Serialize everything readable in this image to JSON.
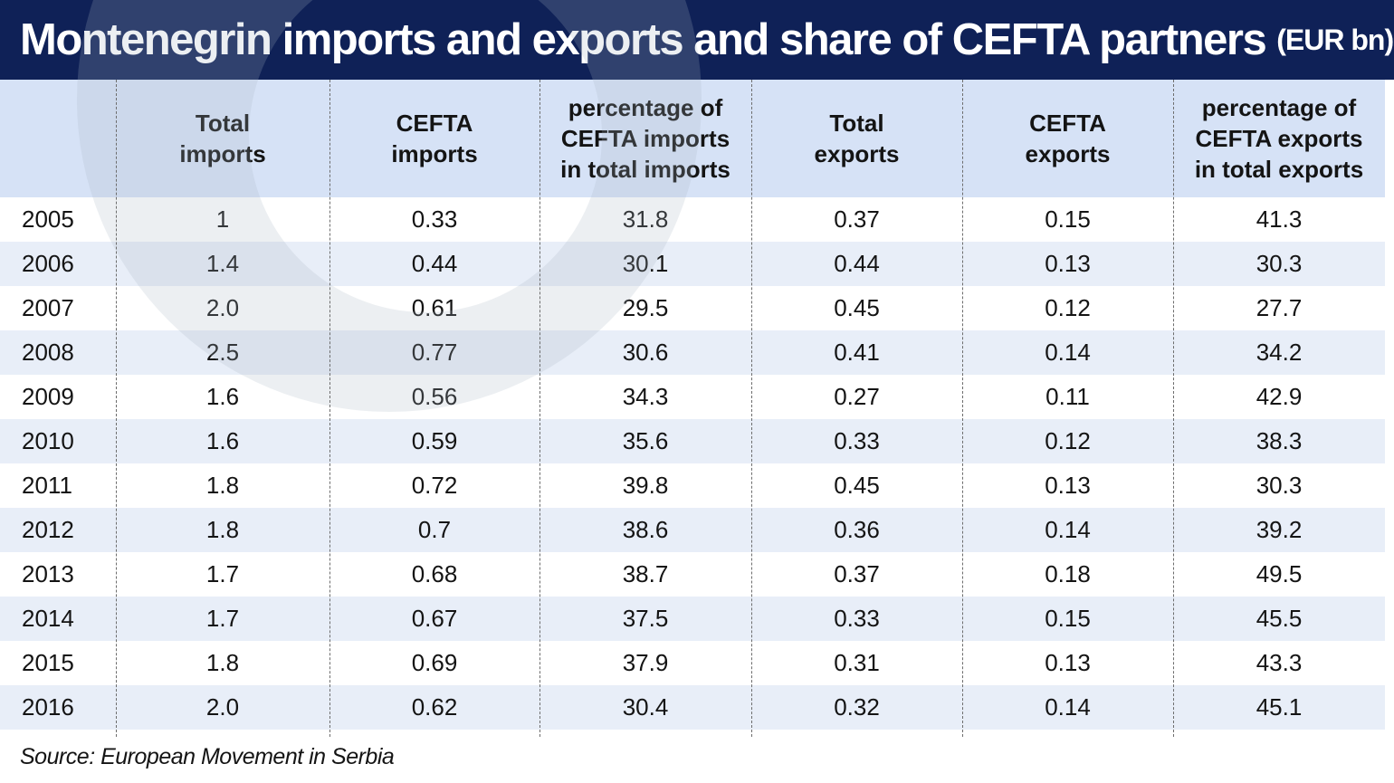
{
  "title": "Montenegrin imports and exports and share of CEFTA partners",
  "unit": "(EUR bn)",
  "source": "Source: European Movement in Serbia",
  "colors": {
    "title_background": "#0f2157",
    "header_background": "#d6e2f6",
    "row_alternate": "#e8eef8"
  },
  "chart_data": {
    "type": "table",
    "title": "Montenegrin imports and exports and share of CEFTA partners (EUR bn)",
    "columns": [
      "",
      "Total\nimports",
      "CEFTA\nimports",
      "percentage of\nCEFTA imports\nin total imports",
      "Total\nexports",
      "CEFTA\nexports",
      "percentage of\nCEFTA exports\nin total exports"
    ],
    "rows": [
      [
        "2005",
        "1",
        "0.33",
        "31.8",
        "0.37",
        "0.15",
        "41.3"
      ],
      [
        "2006",
        "1.4",
        "0.44",
        "30.1",
        "0.44",
        "0.13",
        "30.3"
      ],
      [
        "2007",
        "2.0",
        "0.61",
        "29.5",
        "0.45",
        "0.12",
        "27.7"
      ],
      [
        "2008",
        "2.5",
        "0.77",
        "30.6",
        "0.41",
        "0.14",
        "34.2"
      ],
      [
        "2009",
        "1.6",
        "0.56",
        "34.3",
        "0.27",
        "0.11",
        "42.9"
      ],
      [
        "2010",
        "1.6",
        "0.59",
        "35.6",
        "0.33",
        "0.12",
        "38.3"
      ],
      [
        "2011",
        "1.8",
        "0.72",
        "39.8",
        "0.45",
        "0.13",
        "30.3"
      ],
      [
        "2012",
        "1.8",
        "0.7",
        "38.6",
        "0.36",
        "0.14",
        "39.2"
      ],
      [
        "2013",
        "1.7",
        "0.68",
        "38.7",
        "0.37",
        "0.18",
        "49.5"
      ],
      [
        "2014",
        "1.7",
        "0.67",
        "37.5",
        "0.33",
        "0.15",
        "45.5"
      ],
      [
        "2015",
        "1.8",
        "0.69",
        "37.9",
        "0.31",
        "0.13",
        "43.3"
      ],
      [
        "2016",
        "2.0",
        "0.62",
        "30.4",
        "0.32",
        "0.14",
        "45.1"
      ]
    ]
  }
}
